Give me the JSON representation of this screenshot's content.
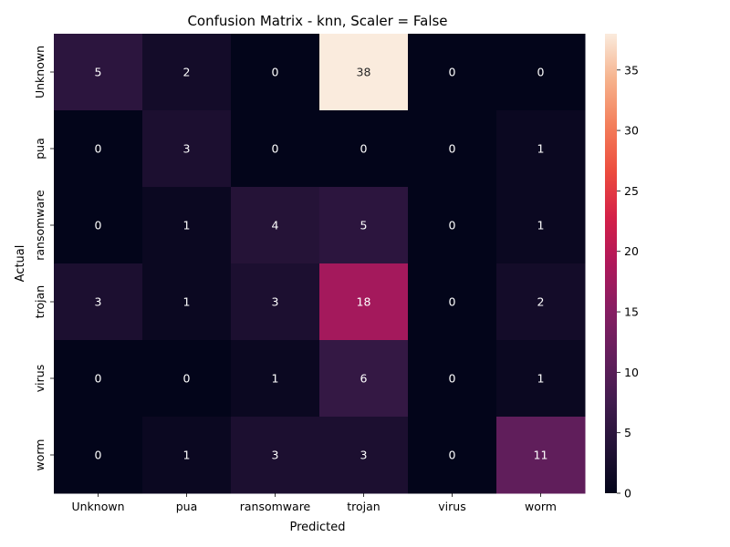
{
  "chart_data": {
    "type": "heatmap",
    "title": "Confusion Matrix - knn, Scaler = False",
    "xlabel": "Predicted",
    "ylabel": "Actual",
    "x_categories": [
      "Unknown",
      "pua",
      "ransomware",
      "trojan",
      "virus",
      "worm"
    ],
    "y_categories": [
      "Unknown",
      "pua",
      "ransomware",
      "trojan",
      "virus",
      "worm"
    ],
    "values": [
      [
        5,
        2,
        0,
        38,
        0,
        0
      ],
      [
        0,
        3,
        0,
        0,
        0,
        1
      ],
      [
        0,
        1,
        4,
        5,
        0,
        1
      ],
      [
        3,
        1,
        3,
        18,
        0,
        2
      ],
      [
        0,
        0,
        1,
        6,
        0,
        1
      ],
      [
        0,
        1,
        3,
        3,
        0,
        11
      ]
    ],
    "vmin": 0,
    "vmax": 38,
    "colorbar_ticks": [
      0,
      5,
      10,
      15,
      20,
      25,
      30,
      35
    ],
    "colormap": "rocket",
    "annotations": true
  }
}
